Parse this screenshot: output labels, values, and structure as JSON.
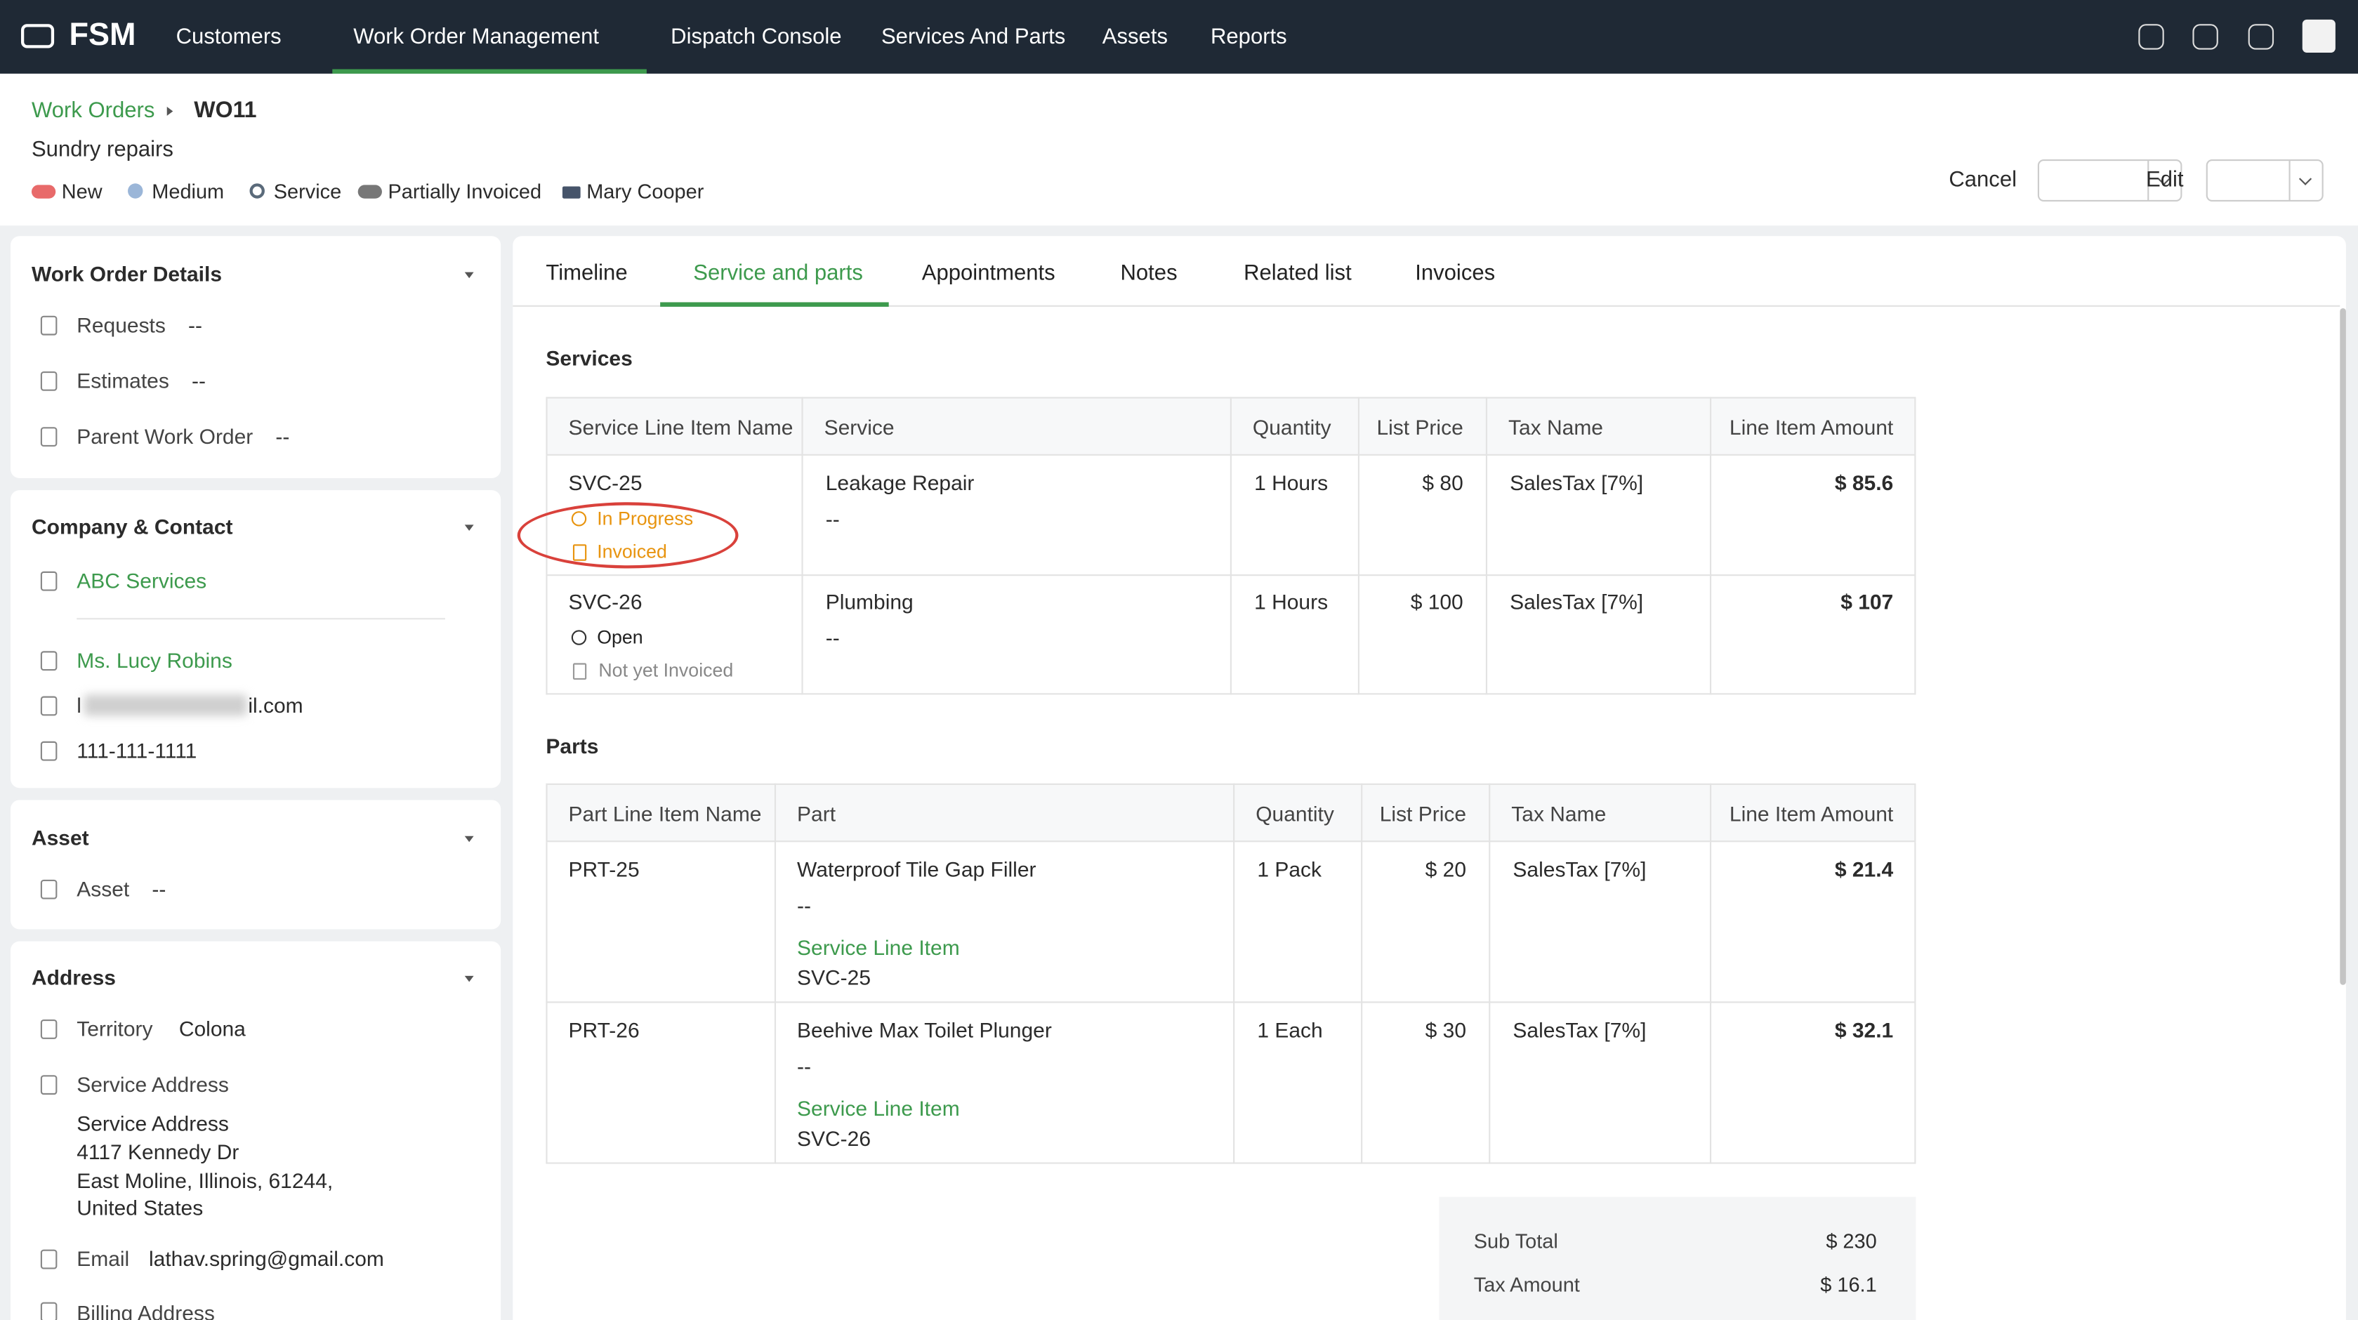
{
  "nav": {
    "brand": "FSM",
    "items": [
      "Customers",
      "Work Order Management",
      "Dispatch Console",
      "Services And Parts",
      "Assets",
      "Reports"
    ]
  },
  "header": {
    "breadcrumb": "Work Orders",
    "id": "WO11",
    "summary": "Sundry repairs",
    "tags": [
      "New",
      "Medium",
      "Service",
      "Partially Invoiced",
      "Mary Cooper"
    ],
    "buttons": [
      "Cancel",
      "Edit"
    ]
  },
  "sidebar": {
    "details": {
      "title": "Work Order Details",
      "rows": [
        [
          "Requests",
          "--"
        ],
        [
          "Estimates",
          "--"
        ],
        [
          "Parent Work Order",
          "--"
        ]
      ]
    },
    "company": {
      "title": "Company & Contact",
      "company": "ABC Services",
      "contact": "Ms. Lucy Robins",
      "email_start": "l",
      "email_end": "il.com",
      "phone": "111-111-1111"
    },
    "asset": {
      "title": "Asset",
      "rows": [
        [
          "Asset",
          "--"
        ]
      ]
    },
    "address": {
      "title": "Address",
      "territory_label": "Territory",
      "territory": "Colona",
      "service_address_label": "Service Address",
      "service_address": [
        "Service Address",
        "4117 Kennedy Dr",
        "East Moline, Illinois, 61244,",
        "United States"
      ],
      "email_label": "Email",
      "email": "lathav.spring@gmail.com",
      "billing_label": "Billing Address"
    }
  },
  "tabs": [
    "Timeline",
    "Service and parts",
    "Appointments",
    "Notes",
    "Related list",
    "Invoices"
  ],
  "services": {
    "title": "Services",
    "columns": [
      "Service Line Item Name",
      "Service",
      "Quantity",
      "List Price",
      "Tax Name",
      "Line Item Amount"
    ],
    "rows": [
      {
        "name": "SVC-25",
        "status": "In Progress",
        "invoice": "Invoiced",
        "service": "Leakage Repair",
        "description": "--",
        "quantity": "1 Hours",
        "list_price": "$ 80",
        "tax": "SalesTax [7%]",
        "amount": "$ 85.6"
      },
      {
        "name": "SVC-26",
        "status": "Open",
        "invoice": "Not yet Invoiced",
        "service": "Plumbing",
        "description": "--",
        "quantity": "1 Hours",
        "list_price": "$ 100",
        "tax": "SalesTax [7%]",
        "amount": "$ 107"
      }
    ]
  },
  "parts": {
    "title": "Parts",
    "columns": [
      "Part Line Item Name",
      "Part",
      "Quantity",
      "List Price",
      "Tax Name",
      "Line Item Amount"
    ],
    "rows": [
      {
        "name": "PRT-25",
        "part": "Waterproof Tile Gap Filler",
        "description": "--",
        "link_label": "Service Line Item",
        "link": "SVC-25",
        "quantity": "1 Pack",
        "list_price": "$ 20",
        "tax": "SalesTax [7%]",
        "amount": "$ 21.4"
      },
      {
        "name": "PRT-26",
        "part": "Beehive Max Toilet Plunger",
        "description": "--",
        "link_label": "Service Line Item",
        "link": "SVC-26",
        "quantity": "1 Each",
        "list_price": "$ 30",
        "tax": "SalesTax [7%]",
        "amount": "$ 32.1"
      }
    ]
  },
  "totals": [
    [
      "Sub Total",
      "$ 230"
    ],
    [
      "Tax Amount",
      "$ 16.1"
    ]
  ]
}
